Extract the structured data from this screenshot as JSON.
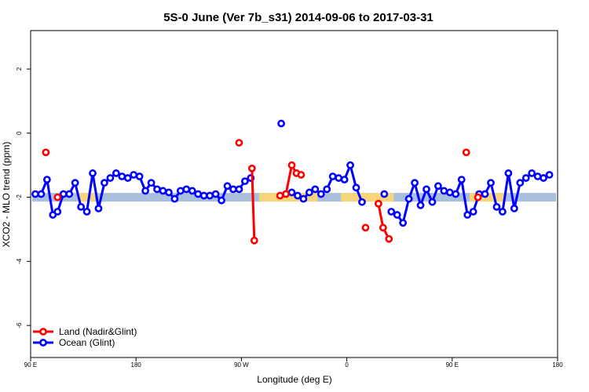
{
  "chart_data": {
    "type": "line",
    "title": "5S-0 June (Ver 7b_s31)   2014-09-06 to 2017-03-31",
    "xlabel": "Longitude (deg E)",
    "ylabel": "XCO2 - MLO trend (ppm)",
    "xlim": [
      0,
      450
    ],
    "ylim": [
      -7,
      3.2
    ],
    "x_ticks": [
      {
        "value": 0,
        "label": "90 E"
      },
      {
        "value": 90,
        "label": "180"
      },
      {
        "value": 180,
        "label": "90 W"
      },
      {
        "value": 270,
        "label": "0"
      },
      {
        "value": 360,
        "label": "90 E"
      },
      {
        "value": 450,
        "label": "180"
      }
    ],
    "y_ticks": [
      {
        "value": 2,
        "label": "2"
      },
      {
        "value": 0,
        "label": "0"
      },
      {
        "value": -2,
        "label": "-2"
      },
      {
        "value": -4,
        "label": "-4"
      },
      {
        "value": -6,
        "label": "-6"
      }
    ],
    "reference_band": {
      "y": -2.0,
      "color_ocean": "#a8bfde",
      "color_land": "#f7d57a"
    },
    "land_spans": [
      [
        40,
        55
      ],
      [
        195,
        245
      ],
      [
        265,
        310
      ],
      [
        375,
        405
      ]
    ],
    "series": [
      {
        "name": "Land (Nadir&Glint)",
        "color": "#ff0000",
        "segments": [
          [
            [
              13,
              -0.6
            ]
          ],
          [
            [
              23,
              -2.0
            ]
          ],
          [
            [
              178,
              -0.3
            ]
          ],
          [
            [
              189,
              -1.1
            ],
            [
              191,
              -3.35
            ]
          ],
          [
            [
              213,
              -1.95
            ],
            [
              218,
              -1.9
            ],
            [
              223,
              -1.0
            ],
            [
              227,
              -1.25
            ],
            [
              231,
              -1.3
            ]
          ],
          [
            [
              286,
              -2.95
            ]
          ],
          [
            [
              297,
              -2.2
            ],
            [
              301,
              -2.95
            ],
            [
              306,
              -3.3
            ]
          ],
          [
            [
              372,
              -0.6
            ]
          ],
          [
            [
              382,
              -2.0
            ]
          ]
        ]
      },
      {
        "name": "Ocean (Glint)",
        "color": "#0000ff",
        "segments": [
          [
            [
              4,
              -1.9
            ],
            [
              9,
              -1.9
            ],
            [
              14,
              -1.45
            ],
            [
              19,
              -2.55
            ],
            [
              23,
              -2.45
            ],
            [
              28,
              -1.9
            ],
            [
              33,
              -1.9
            ],
            [
              38,
              -1.55
            ],
            [
              43,
              -2.3
            ],
            [
              48,
              -2.45
            ],
            [
              53,
              -1.25
            ],
            [
              58,
              -2.35
            ],
            [
              63,
              -1.55
            ],
            [
              68,
              -1.4
            ],
            [
              73,
              -1.25
            ],
            [
              78,
              -1.35
            ],
            [
              83,
              -1.4
            ],
            [
              88,
              -1.3
            ],
            [
              93,
              -1.35
            ],
            [
              98,
              -1.8
            ],
            [
              103,
              -1.55
            ],
            [
              108,
              -1.75
            ],
            [
              113,
              -1.8
            ],
            [
              118,
              -1.85
            ],
            [
              123,
              -2.05
            ],
            [
              128,
              -1.8
            ],
            [
              133,
              -1.75
            ],
            [
              138,
              -1.8
            ],
            [
              143,
              -1.9
            ],
            [
              148,
              -1.95
            ],
            [
              153,
              -1.95
            ],
            [
              158,
              -1.9
            ],
            [
              163,
              -2.1
            ],
            [
              168,
              -1.65
            ],
            [
              173,
              -1.75
            ],
            [
              178,
              -1.75
            ],
            [
              183,
              -1.5
            ],
            [
              188,
              -1.4
            ]
          ],
          [
            [
              214,
              0.3
            ]
          ],
          [
            [
              223,
              -1.85
            ],
            [
              228,
              -1.95
            ],
            [
              233,
              -2.05
            ],
            [
              238,
              -1.85
            ],
            [
              243,
              -1.75
            ],
            [
              248,
              -1.9
            ],
            [
              253,
              -1.75
            ],
            [
              258,
              -1.35
            ],
            [
              263,
              -1.4
            ],
            [
              268,
              -1.45
            ],
            [
              273,
              -1.0
            ],
            [
              278,
              -1.7
            ],
            [
              283,
              -2.15
            ]
          ],
          [
            [
              302,
              -1.9
            ]
          ],
          [
            [
              308,
              -2.45
            ],
            [
              313,
              -2.55
            ],
            [
              318,
              -2.8
            ],
            [
              323,
              -2.05
            ],
            [
              328,
              -1.55
            ],
            [
              333,
              -2.25
            ],
            [
              338,
              -1.75
            ],
            [
              343,
              -2.15
            ],
            [
              348,
              -1.65
            ],
            [
              353,
              -1.8
            ],
            [
              358,
              -1.85
            ],
            [
              363,
              -1.9
            ],
            [
              368,
              -1.45
            ],
            [
              373,
              -2.55
            ],
            [
              378,
              -2.45
            ],
            [
              383,
              -1.9
            ],
            [
              388,
              -1.9
            ],
            [
              393,
              -1.55
            ],
            [
              398,
              -2.3
            ],
            [
              403,
              -2.45
            ],
            [
              408,
              -1.25
            ],
            [
              413,
              -2.35
            ],
            [
              418,
              -1.55
            ],
            [
              423,
              -1.4
            ],
            [
              428,
              -1.25
            ],
            [
              433,
              -1.35
            ],
            [
              438,
              -1.4
            ],
            [
              443,
              -1.3
            ]
          ]
        ]
      }
    ],
    "legend": {
      "position": "bottom-left"
    }
  }
}
